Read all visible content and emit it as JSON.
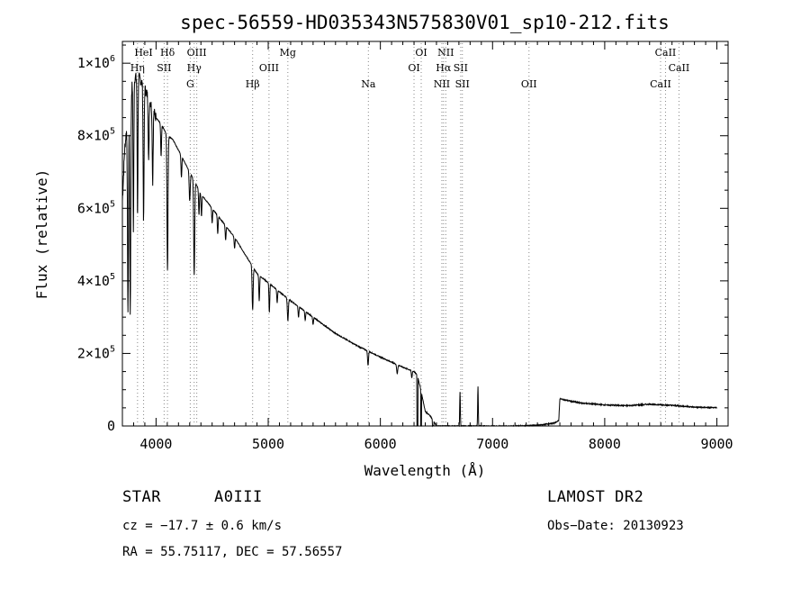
{
  "chart_data": {
    "type": "line",
    "title": "spec-56559-HD035343N575830V01_sp10-212.fits",
    "xlabel": "Wavelength (Å)",
    "ylabel": "Flux (relative)",
    "xlim": [
      3700,
      9100
    ],
    "ylim": [
      0,
      1060000
    ],
    "xticks": [
      4000,
      5000,
      6000,
      7000,
      8000,
      9000
    ],
    "xtick_labels": [
      "4000",
      "5000",
      "6000",
      "7000",
      "8000",
      "9000"
    ],
    "yticks": [
      0,
      200000,
      400000,
      600000,
      800000,
      1000000
    ],
    "ytick_labels": [
      {
        "mant": "0",
        "exp": ""
      },
      {
        "mant": "2×10",
        "exp": "5"
      },
      {
        "mant": "4×10",
        "exp": "5"
      },
      {
        "mant": "6×10",
        "exp": "5"
      },
      {
        "mant": "8×10",
        "exp": "5"
      },
      {
        "mant": "1×10",
        "exp": "6"
      }
    ],
    "spectral_lines": [
      {
        "label": "HeI",
        "wave": 3889,
        "row": 0
      },
      {
        "label": "Hη",
        "wave": 3835,
        "row": 1
      },
      {
        "label": "Hδ",
        "wave": 4102,
        "row": 0
      },
      {
        "label": "SII",
        "wave": 4072,
        "row": 1
      },
      {
        "label": "OIII",
        "wave": 4363,
        "row": 0
      },
      {
        "label": "Hγ",
        "wave": 4340,
        "row": 1
      },
      {
        "label": "G",
        "wave": 4305,
        "row": 2
      },
      {
        "label": "Hβ",
        "wave": 4861,
        "row": 2
      },
      {
        "label": "OIII",
        "wave": 5007,
        "row": 1
      },
      {
        "label": "Mg",
        "wave": 5175,
        "row": 0
      },
      {
        "label": "Na",
        "wave": 5893,
        "row": 2
      },
      {
        "label": "OI",
        "wave": 6364,
        "row": 0
      },
      {
        "label": "OI",
        "wave": 6300,
        "row": 1
      },
      {
        "label": "NII",
        "wave": 6583,
        "row": 0
      },
      {
        "label": "Hα",
        "wave": 6563,
        "row": 1
      },
      {
        "label": "SII",
        "wave": 6716,
        "row": 1
      },
      {
        "label": "NII",
        "wave": 6548,
        "row": 2
      },
      {
        "label": "SII",
        "wave": 6731,
        "row": 2
      },
      {
        "label": "OII",
        "wave": 7325,
        "row": 2
      },
      {
        "label": "CaII",
        "wave": 8542,
        "row": 0
      },
      {
        "label": "CaII",
        "wave": 8662,
        "row": 1
      },
      {
        "label": "CaII",
        "wave": 8498,
        "row": 2
      }
    ],
    "series": [
      {
        "continuum": [
          [
            3700,
            620000
          ],
          [
            3720,
            760000
          ],
          [
            3760,
            900000
          ],
          [
            3800,
            960000
          ],
          [
            3850,
            960000
          ],
          [
            3900,
            930000
          ],
          [
            3950,
            890000
          ],
          [
            4000,
            850000
          ],
          [
            4050,
            830000
          ],
          [
            4100,
            800000
          ],
          [
            4150,
            790000
          ],
          [
            4200,
            760000
          ],
          [
            4300,
            700000
          ],
          [
            4400,
            640000
          ],
          [
            4500,
            600000
          ],
          [
            4600,
            560000
          ],
          [
            4700,
            520000
          ],
          [
            4800,
            470000
          ],
          [
            4900,
            420000
          ],
          [
            5000,
            395000
          ],
          [
            5200,
            345000
          ],
          [
            5400,
            300000
          ],
          [
            5600,
            255000
          ],
          [
            5800,
            220000
          ],
          [
            6000,
            190000
          ],
          [
            6200,
            162000
          ],
          [
            6300,
            150000
          ],
          [
            6330,
            140000
          ],
          [
            6360,
            100000
          ],
          [
            6400,
            40000
          ],
          [
            6440,
            30000
          ],
          [
            6500,
            0
          ],
          [
            6600,
            0
          ],
          [
            7200,
            0
          ],
          [
            7400,
            2000
          ],
          [
            7550,
            8000
          ],
          [
            7590,
            15000
          ],
          [
            7600,
            75000
          ],
          [
            7700,
            68000
          ],
          [
            7800,
            63000
          ],
          [
            8000,
            58000
          ],
          [
            8200,
            56000
          ],
          [
            8400,
            60000
          ],
          [
            8600,
            57000
          ],
          [
            8800,
            52000
          ],
          [
            9000,
            50000
          ]
        ],
        "absorption": [
          [
            3750,
            550000,
            10
          ],
          [
            3770,
            600000,
            10
          ],
          [
            3798,
            420000,
            8
          ],
          [
            3835,
            380000,
            8
          ],
          [
            3889,
            370000,
            9
          ],
          [
            3934,
            180000,
            8
          ],
          [
            3970,
            200000,
            9
          ],
          [
            4045,
            90000,
            8
          ],
          [
            4102,
            370000,
            10
          ],
          [
            4226,
            60000,
            8
          ],
          [
            4300,
            80000,
            10
          ],
          [
            4340,
            260000,
            10
          ],
          [
            4383,
            70000,
            8
          ],
          [
            4405,
            60000,
            8
          ],
          [
            4500,
            40000,
            8
          ],
          [
            4550,
            50000,
            8
          ],
          [
            4620,
            40000,
            8
          ],
          [
            4700,
            30000,
            8
          ],
          [
            4861,
            120000,
            10
          ],
          [
            4920,
            70000,
            8
          ],
          [
            5010,
            80000,
            8
          ],
          [
            5080,
            35000,
            8
          ],
          [
            5175,
            60000,
            10
          ],
          [
            5270,
            30000,
            8
          ],
          [
            5330,
            25000,
            8
          ],
          [
            5400,
            20000,
            8
          ],
          [
            5890,
            40000,
            9
          ],
          [
            6150,
            25000,
            10
          ],
          [
            6280,
            20000,
            8
          ]
        ],
        "emission": [
          [
            6710,
            95000,
            6
          ],
          [
            6870,
            110000,
            6
          ]
        ],
        "dropouts": [
          [
            6330,
            5
          ],
          [
            6363,
            5
          ],
          [
            6470,
            8
          ],
          [
            6520,
            10
          ]
        ]
      }
    ]
  },
  "info": {
    "object_type": "STAR",
    "spectral_class": "A0III",
    "survey": "LAMOST  DR2",
    "cz": "cz = −17.7 ± 0.6 km/s",
    "obs_date": "Obs−Date: 20130923",
    "coords": "RA =  55.75117, DEC =  57.56557"
  }
}
